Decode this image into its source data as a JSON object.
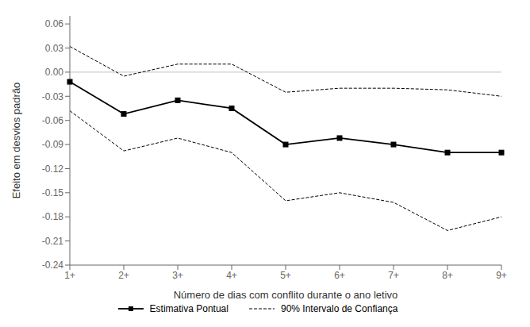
{
  "chart_data": {
    "type": "line",
    "xlabel": "Número de dias com conflito durante o ano letivo",
    "ylabel": "Efeito em desvios padrão",
    "categories": [
      "1+",
      "2+",
      "3+",
      "4+",
      "5+",
      "6+",
      "7+",
      "8+",
      "9+"
    ],
    "series": [
      {
        "name": "Estimativa Pontual",
        "color": "#000000",
        "marker": "square",
        "line_style": "solid",
        "values": [
          -0.012,
          -0.052,
          -0.035,
          -0.045,
          -0.09,
          -0.082,
          -0.09,
          -0.1,
          -0.1
        ]
      },
      {
        "name": "90% Intervalo de Confiança",
        "color": "#000000",
        "marker": "none",
        "line_style": "dashed",
        "values": [
          0.032,
          -0.005,
          0.01,
          0.01,
          -0.025,
          -0.02,
          -0.02,
          -0.022,
          -0.03
        ]
      },
      {
        "name": "90% Intervalo de Confiança",
        "color": "#000000",
        "marker": "none",
        "line_style": "dashed",
        "values": [
          -0.048,
          -0.098,
          -0.082,
          -0.1,
          -0.16,
          -0.15,
          -0.162,
          -0.197,
          -0.18
        ]
      }
    ],
    "ylim": [
      -0.24,
      0.07
    ],
    "yticks": [
      -0.24,
      -0.21,
      -0.18,
      -0.15,
      -0.12,
      -0.09,
      -0.06,
      -0.03,
      {
        "value": 0,
        "label": "0.00"
      },
      0.03,
      0.06
    ],
    "hline": 0,
    "grid": false,
    "legend": "bottom"
  }
}
